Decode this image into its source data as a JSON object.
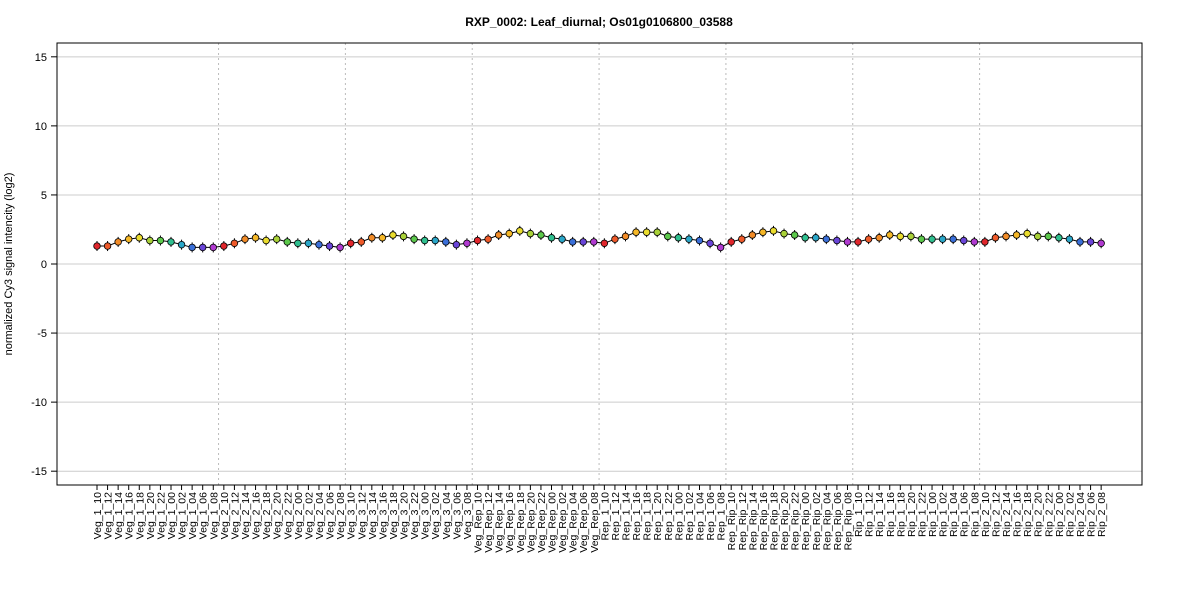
{
  "chart_data": {
    "type": "line",
    "title": "RXP_0002: Leaf_diurnal; Os01g0106800_03588",
    "xlabel": "",
    "ylabel": "normalized Cy3 signal intencity (log2)",
    "ylim": [
      -16,
      16
    ],
    "yticks": [
      -15,
      -10,
      -5,
      0,
      5,
      10,
      15
    ],
    "grid": true,
    "categories": [
      "Veg_1_10",
      "Veg_1_12",
      "Veg_1_14",
      "Veg_1_16",
      "Veg_1_18",
      "Veg_1_20",
      "Veg_1_22",
      "Veg_1_00",
      "Veg_1_02",
      "Veg_1_04",
      "Veg_1_06",
      "Veg_1_08",
      "Veg_2_10",
      "Veg_2_12",
      "Veg_2_14",
      "Veg_2_16",
      "Veg_2_18",
      "Veg_2_20",
      "Veg_2_22",
      "Veg_2_00",
      "Veg_2_02",
      "Veg_2_04",
      "Veg_2_06",
      "Veg_2_08",
      "Veg_3_10",
      "Veg_3_12",
      "Veg_3_14",
      "Veg_3_16",
      "Veg_3_18",
      "Veg_3_20",
      "Veg_3_22",
      "Veg_3_00",
      "Veg_3_02",
      "Veg_3_04",
      "Veg_3_06",
      "Veg_3_08",
      "Veg_Rep_10",
      "Veg_Rep_12",
      "Veg_Rep_14",
      "Veg_Rep_16",
      "Veg_Rep_18",
      "Veg_Rep_20",
      "Veg_Rep_22",
      "Veg_Rep_00",
      "Veg_Rep_02",
      "Veg_Rep_04",
      "Veg_Rep_06",
      "Veg_Rep_08",
      "Rep_1_10",
      "Rep_1_12",
      "Rep_1_14",
      "Rep_1_16",
      "Rep_1_18",
      "Rep_1_20",
      "Rep_1_22",
      "Rep_1_00",
      "Rep_1_02",
      "Rep_1_04",
      "Rep_1_06",
      "Rep_1_08",
      "Rep_Rip_10",
      "Rep_Rip_12",
      "Rep_Rip_14",
      "Rep_Rip_16",
      "Rep_Rip_18",
      "Rep_Rip_20",
      "Rep_Rip_22",
      "Rep_Rip_00",
      "Rep_Rip_02",
      "Rep_Rip_04",
      "Rep_Rip_06",
      "Rep_Rip_08",
      "Rip_1_10",
      "Rip_1_12",
      "Rip_1_14",
      "Rip_1_16",
      "Rip_1_18",
      "Rip_1_20",
      "Rip_1_22",
      "Rip_1_00",
      "Rip_1_02",
      "Rip_1_04",
      "Rip_1_06",
      "Rip_1_08",
      "Rip_2_10",
      "Rip_2_12",
      "Rip_2_14",
      "Rip_2_16",
      "Rip_2_18",
      "Rip_2_20",
      "Rip_2_22",
      "Rip_2_00",
      "Rip_2_02",
      "Rip_2_04",
      "Rip_2_06",
      "Rip_2_08"
    ],
    "group_separators_after": [
      "Veg_1_08",
      "Veg_2_08",
      "Veg_3_08",
      "Veg_Rep_08",
      "Rep_1_08",
      "Rep_Rip_08",
      "Rip_1_08"
    ],
    "values": [
      1.3,
      1.3,
      1.6,
      1.8,
      1.9,
      1.7,
      1.7,
      1.6,
      1.4,
      1.2,
      1.2,
      1.2,
      1.3,
      1.5,
      1.8,
      1.9,
      1.7,
      1.8,
      1.6,
      1.5,
      1.5,
      1.4,
      1.3,
      1.2,
      1.5,
      1.6,
      1.9,
      1.9,
      2.1,
      2.0,
      1.8,
      1.7,
      1.7,
      1.6,
      1.4,
      1.5,
      1.7,
      1.8,
      2.1,
      2.2,
      2.4,
      2.2,
      2.1,
      1.9,
      1.8,
      1.6,
      1.6,
      1.6,
      1.5,
      1.8,
      2.0,
      2.3,
      2.3,
      2.3,
      2.0,
      1.9,
      1.8,
      1.7,
      1.5,
      1.2,
      1.6,
      1.8,
      2.1,
      2.3,
      2.4,
      2.2,
      2.1,
      1.9,
      1.9,
      1.8,
      1.7,
      1.6,
      1.6,
      1.8,
      1.9,
      2.1,
      2.0,
      2.0,
      1.8,
      1.8,
      1.8,
      1.8,
      1.7,
      1.6,
      1.6,
      1.9,
      2.0,
      2.1,
      2.2,
      2.0,
      2.0,
      1.9,
      1.8,
      1.6,
      1.6,
      1.5
    ],
    "point_colors": [
      "#e0262c",
      "#ee5a2a",
      "#f28c28",
      "#f5b727",
      "#eadc2e",
      "#a9d138",
      "#5cc84b",
      "#2fbf8f",
      "#2aa6c8",
      "#3a6fd8",
      "#6a45d8",
      "#b03ad0",
      "#e0262c",
      "#ee5a2a",
      "#f28c28",
      "#f5b727",
      "#eadc2e",
      "#a9d138",
      "#5cc84b",
      "#2fbf8f",
      "#2aa6c8",
      "#3a6fd8",
      "#6a45d8",
      "#b03ad0",
      "#e0262c",
      "#ee5a2a",
      "#f28c28",
      "#f5b727",
      "#eadc2e",
      "#a9d138",
      "#5cc84b",
      "#2fbf8f",
      "#2aa6c8",
      "#3a6fd8",
      "#6a45d8",
      "#b03ad0",
      "#e0262c",
      "#ee5a2a",
      "#f28c28",
      "#f5b727",
      "#eadc2e",
      "#a9d138",
      "#5cc84b",
      "#2fbf8f",
      "#2aa6c8",
      "#3a6fd8",
      "#6a45d8",
      "#b03ad0",
      "#e0262c",
      "#ee5a2a",
      "#f28c28",
      "#f5b727",
      "#eadc2e",
      "#a9d138",
      "#5cc84b",
      "#2fbf8f",
      "#2aa6c8",
      "#3a6fd8",
      "#6a45d8",
      "#b03ad0",
      "#e0262c",
      "#ee5a2a",
      "#f28c28",
      "#f5b727",
      "#eadc2e",
      "#a9d138",
      "#5cc84b",
      "#2fbf8f",
      "#2aa6c8",
      "#3a6fd8",
      "#6a45d8",
      "#b03ad0",
      "#e0262c",
      "#ee5a2a",
      "#f28c28",
      "#f5b727",
      "#eadc2e",
      "#a9d138",
      "#5cc84b",
      "#2fbf8f",
      "#2aa6c8",
      "#3a6fd8",
      "#6a45d8",
      "#b03ad0",
      "#e0262c",
      "#ee5a2a",
      "#f28c28",
      "#f5b727",
      "#eadc2e",
      "#a9d138",
      "#5cc84b",
      "#2fbf8f",
      "#2aa6c8",
      "#3a6fd8",
      "#6a45d8",
      "#b03ad0"
    ],
    "colors": {
      "line": "#000000",
      "grid": "#cccccc",
      "separator": "#bbbbbb",
      "frame": "#000000"
    }
  }
}
